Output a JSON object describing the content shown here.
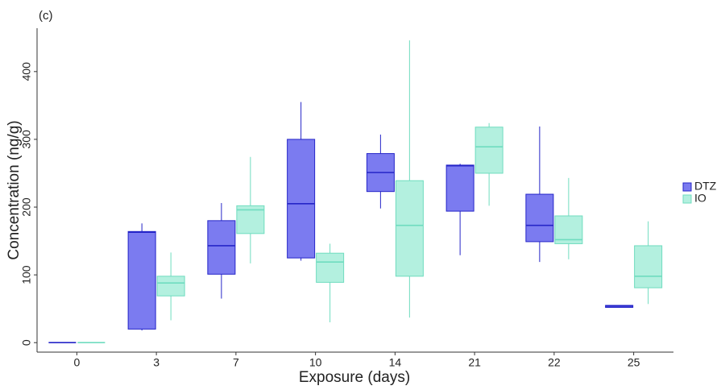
{
  "chart_data": {
    "type": "box",
    "title": "(c)",
    "x_label": "Exposure (days)",
    "y_label": "Concentration (ng/g)",
    "categories": [
      "0",
      "3",
      "7",
      "10",
      "14",
      "21",
      "22",
      "25"
    ],
    "ylim": [
      -14,
      464
    ],
    "yticks": [
      0,
      100,
      200,
      300,
      400
    ],
    "legend": "right",
    "series": [
      {
        "name": "DTZ",
        "color": "#7b7bf0",
        "edge_color": "#2525c8",
        "min": [
          0,
          18,
          65,
          121,
          198,
          129,
          119,
          53
        ],
        "q1": [
          0,
          20,
          101,
          125,
          223,
          194,
          149,
          52
        ],
        "median": [
          0,
          163,
          143,
          205,
          251,
          261,
          173,
          54
        ],
        "q3": [
          0,
          164,
          180,
          300,
          279,
          262,
          219,
          55
        ],
        "max": [
          0,
          176,
          206,
          355,
          307,
          264,
          319,
          55
        ]
      },
      {
        "name": "IO",
        "color": "#b3f0df",
        "edge_color": "#6fdcbf",
        "min": [
          0,
          33,
          117,
          30,
          37,
          202,
          123,
          57
        ],
        "q1": [
          0,
          69,
          161,
          89,
          98,
          250,
          146,
          81
        ],
        "median": [
          0,
          88,
          196,
          119,
          173,
          289,
          152,
          98
        ],
        "q3": [
          0,
          98,
          202,
          132,
          239,
          318,
          187,
          143
        ],
        "max": [
          0,
          133,
          274,
          146,
          446,
          324,
          243,
          179
        ]
      }
    ]
  }
}
